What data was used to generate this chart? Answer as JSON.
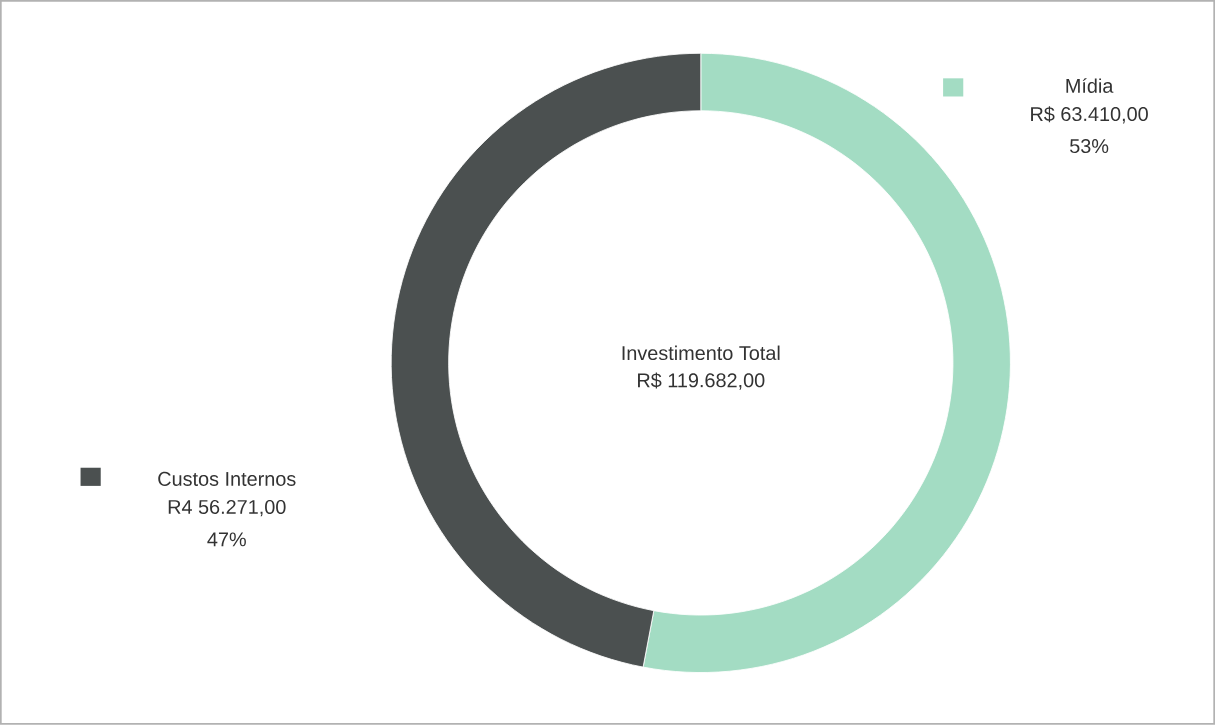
{
  "chart_data": {
    "type": "donut",
    "categories": [
      "Mídia",
      "Custos Internos"
    ],
    "values": [
      63410,
      56271
    ],
    "colors": [
      "#a3dcc3",
      "#4b5050"
    ],
    "value_labels": [
      "R$ 63.410,00",
      "R4 56.271,00"
    ],
    "annotations": [
      "Investimento Total",
      "R$ 119.682,00",
      "53%",
      "47%"
    ]
  }
}
